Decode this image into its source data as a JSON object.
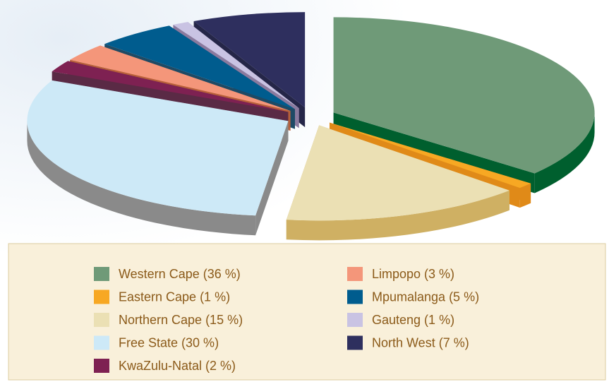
{
  "chart_data": {
    "type": "pie3d",
    "categories": [
      "Western Cape (36 %)",
      "Eastern Cape (1 %)",
      "Northern Cape (15 %)",
      "Free State (30 %)",
      "KwaZulu-Natal (2 %)",
      "Limpopo (3 %)",
      "Mpumalanga (5 %)",
      "Gauteng (1 %)",
      "North West (7 %)"
    ],
    "values": [
      36,
      1,
      15,
      30,
      2,
      3,
      5,
      1,
      7
    ],
    "colors": [
      "#6f9a78",
      "#f7a823",
      "#ebe0b4",
      "#cde9f7",
      "#7e2152",
      "#f4967a",
      "#005c8e",
      "#c9c3e3",
      "#2e2f5e"
    ],
    "depth_colors": [
      "#005f2e",
      "#e08a18",
      "#cfb063",
      "#8a8a8a",
      "#5a2a45",
      "#b8603a",
      "#1e4a65",
      "#8a7a9e",
      "#252648"
    ]
  }
}
